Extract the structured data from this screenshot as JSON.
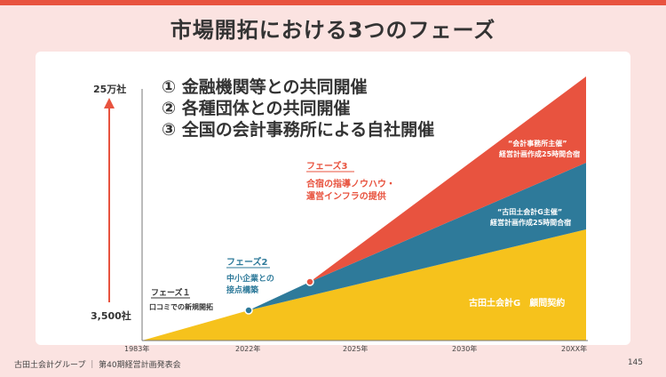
{
  "title": "市場開拓における3つのフェーズ",
  "y_axis": {
    "top_label": "25万社",
    "bottom_label": "3,500社"
  },
  "x_axis": {
    "ticks": [
      "1983年",
      "2022年",
      "2025年",
      "2030年",
      "20XX年"
    ]
  },
  "strategies": [
    "① 金融機関等との共同開催",
    "② 各種団体との共同開催",
    "③ 全国の会計事務所による自社開催"
  ],
  "phases": [
    {
      "label": "フェーズ１",
      "desc": [
        "口コミでの新規開拓"
      ]
    },
    {
      "label": "フェーズ2",
      "desc": [
        "中小企業との",
        "接点構築"
      ]
    },
    {
      "label": "フェーズ3",
      "desc": [
        "合宿の指導ノウハウ・",
        "運営インフラの提供"
      ]
    }
  ],
  "areas": {
    "red": [
      "“会計事務所主催”",
      "経営計画作成25時間合宿"
    ],
    "blue": [
      "“古田土会計G主催”",
      "経営計画作成25時間合宿"
    ],
    "yellow": [
      "古田土会計G　顧問契約"
    ]
  },
  "colors": {
    "accent": "#e8533f",
    "red": "#e8533f",
    "blue": "#2e7a9a",
    "yellow": "#f6c21c",
    "text": "#333333"
  },
  "footer": {
    "left": "古田土会計グループ ｜ 第40期経営計画発表会",
    "page": "145"
  }
}
